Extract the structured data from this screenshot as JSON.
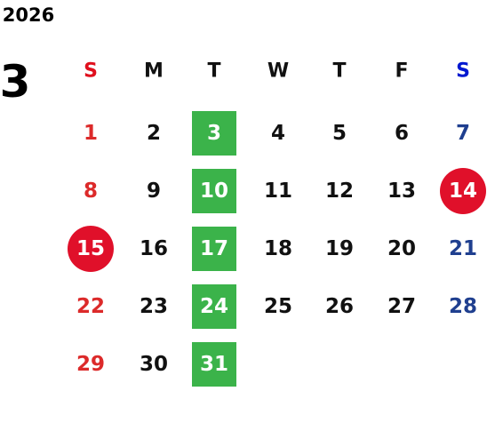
{
  "calendar": {
    "year": "2026",
    "month": "3",
    "weekdays": [
      "S",
      "M",
      "T",
      "W",
      "T",
      "F",
      "S"
    ],
    "weeks": [
      [
        1,
        2,
        {
          "day": 3,
          "mark": "square"
        },
        4,
        5,
        6,
        7
      ],
      [
        8,
        9,
        {
          "day": 10,
          "mark": "square"
        },
        11,
        12,
        13,
        {
          "day": 14,
          "mark": "circle"
        }
      ],
      [
        {
          "day": 15,
          "mark": "circle"
        },
        16,
        {
          "day": 17,
          "mark": "square"
        },
        18,
        19,
        20,
        21
      ],
      [
        22,
        23,
        {
          "day": 24,
          "mark": "square"
        },
        25,
        26,
        27,
        28
      ],
      [
        29,
        30,
        {
          "day": 31,
          "mark": "square"
        }
      ]
    ],
    "colors": {
      "text": "#111111",
      "sunday": "#dc2a2a",
      "saturday": "#1f3f8f",
      "sunday_header": "#e0101e",
      "saturday_header": "#0018d0",
      "square": "#3bb34a",
      "circle": "#e0102a",
      "marked_text": "#ffffff"
    }
  }
}
